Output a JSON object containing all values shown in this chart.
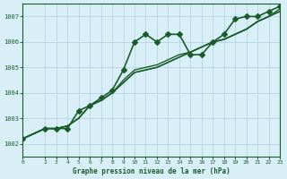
{
  "title": "Graphe pression niveau de la mer (hPa)",
  "background_color": "#d8eff8",
  "grid_color": "#b0cfe0",
  "line_color": "#1a5c2a",
  "xlim": [
    0,
    23
  ],
  "ylim": [
    1001.5,
    1007.5
  ],
  "yticks": [
    1002,
    1003,
    1004,
    1005,
    1006,
    1007
  ],
  "xticks": [
    0,
    2,
    3,
    4,
    5,
    6,
    7,
    8,
    9,
    10,
    11,
    12,
    13,
    14,
    15,
    16,
    17,
    18,
    19,
    20,
    21,
    22,
    23
  ],
  "series": [
    {
      "x": [
        0,
        2,
        3,
        4,
        5,
        6,
        7,
        8,
        9,
        10,
        11,
        12,
        13,
        14,
        15,
        16,
        17,
        18,
        19,
        20,
        21,
        22,
        23
      ],
      "y": [
        1002.2,
        1002.6,
        1002.6,
        1002.6,
        1003.3,
        1003.5,
        1003.8,
        1004.1,
        1004.9,
        1006.0,
        1006.3,
        1006.0,
        1006.3,
        1006.3,
        1005.5,
        1005.5,
        1006.0,
        1006.3,
        1006.9,
        1007.0,
        1007.0,
        1007.2,
        1007.4
      ],
      "marker": "D",
      "markersize": 3,
      "linewidth": 1.2
    },
    {
      "x": [
        0,
        2,
        3,
        4,
        5,
        6,
        7,
        8,
        9,
        10,
        11,
        12,
        13,
        14,
        15,
        16,
        17,
        18,
        19,
        20,
        21,
        22,
        23
      ],
      "y": [
        1002.2,
        1002.6,
        1002.6,
        1002.7,
        1003.0,
        1003.5,
        1003.7,
        1004.0,
        1004.5,
        1004.9,
        1005.0,
        1005.1,
        1005.3,
        1005.5,
        1005.6,
        1005.8,
        1006.0,
        1006.1,
        1006.3,
        1006.5,
        1006.8,
        1007.0,
        1007.3
      ],
      "marker": "D",
      "markersize": 0,
      "linewidth": 1.0
    },
    {
      "x": [
        0,
        2,
        3,
        4,
        5,
        6,
        7,
        8,
        9,
        10,
        11,
        12,
        13,
        14,
        15,
        16,
        17,
        18,
        19,
        20,
        21,
        22,
        23
      ],
      "y": [
        1002.2,
        1002.6,
        1002.6,
        1002.7,
        1003.0,
        1003.5,
        1003.7,
        1004.0,
        1004.4,
        1004.8,
        1004.9,
        1005.0,
        1005.2,
        1005.4,
        1005.6,
        1005.8,
        1006.0,
        1006.1,
        1006.3,
        1006.5,
        1006.8,
        1007.0,
        1007.2
      ],
      "marker": "D",
      "markersize": 0,
      "linewidth": 1.0
    },
    {
      "x": [
        0,
        2,
        3,
        4,
        5,
        6,
        7,
        8,
        9,
        10,
        11,
        12,
        13,
        14,
        15,
        16,
        17,
        18,
        19,
        20,
        21,
        22,
        23
      ],
      "y": [
        1002.2,
        1002.6,
        1002.6,
        1002.7,
        1003.0,
        1003.5,
        1003.7,
        1004.0,
        1004.4,
        1004.8,
        1004.9,
        1005.0,
        1005.2,
        1005.4,
        1005.6,
        1005.8,
        1006.0,
        1006.1,
        1006.3,
        1006.5,
        1006.8,
        1007.0,
        1007.2
      ],
      "marker": "D",
      "markersize": 0,
      "linewidth": 1.0
    }
  ]
}
